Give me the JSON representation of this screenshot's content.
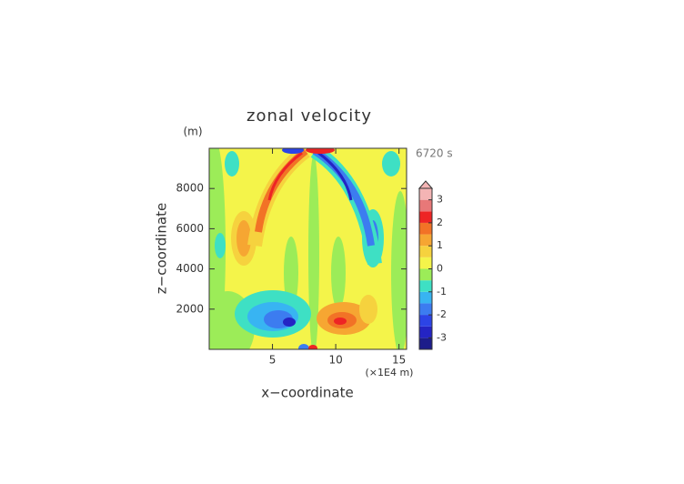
{
  "chart_data": {
    "type": "contour",
    "title": "zonal velocity",
    "time_label": "6720 s",
    "xlabel": "x−coordinate",
    "ylabel": "z−coordinate",
    "x_unit": "(×1E4 m)",
    "y_unit": "(m)",
    "xlim": [
      0,
      15.6
    ],
    "ylim": [
      0,
      10000
    ],
    "xticks": [
      5,
      10,
      15
    ],
    "yticks": [
      2000,
      4000,
      6000,
      8000
    ],
    "levels": [
      -3.5,
      -3,
      -2.5,
      -2,
      -1.5,
      -1,
      -0.5,
      0,
      0.5,
      1,
      1.5,
      2,
      2.5,
      3,
      3.5
    ],
    "colors": [
      "#1c1c8a",
      "#2424c4",
      "#2c44e6",
      "#3c7cf0",
      "#38b4f2",
      "#3ee0c4",
      "#9cec58",
      "#f4f44a",
      "#f6d23e",
      "#f6a632",
      "#f27226",
      "#ee2424",
      "#e87878",
      "#f4b4b4"
    ],
    "colorbar_ticks": [
      -3,
      -2,
      -1,
      0,
      1,
      2,
      3
    ],
    "extend": "max"
  }
}
